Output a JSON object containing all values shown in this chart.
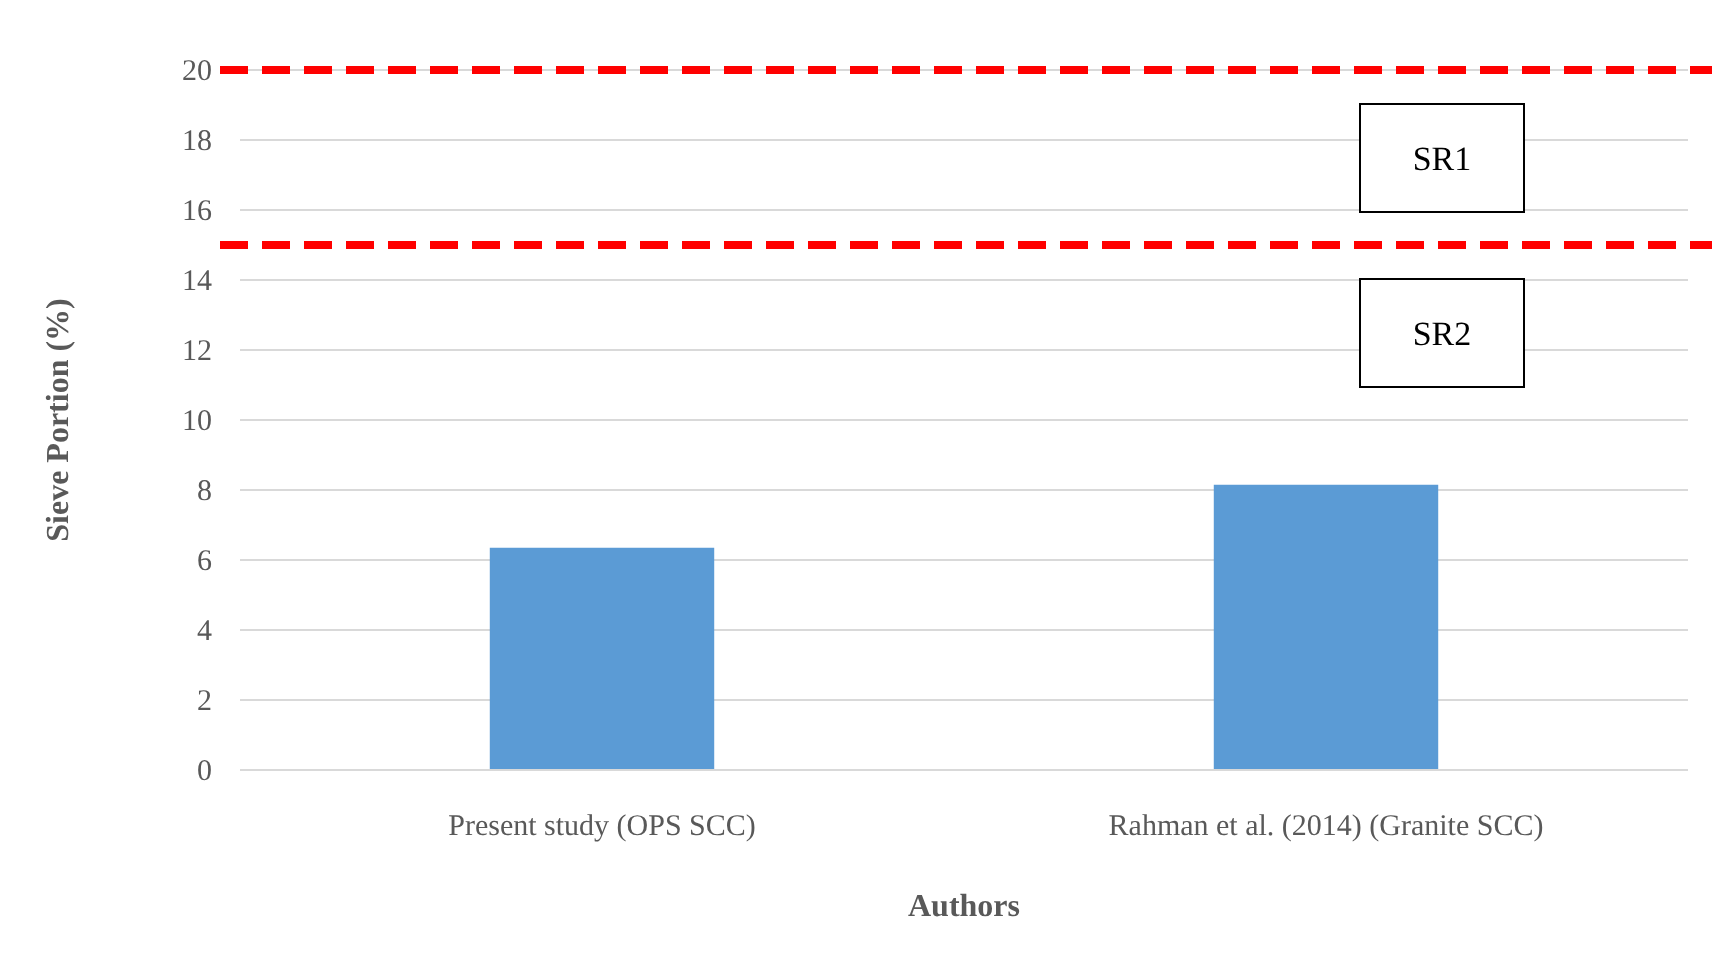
{
  "chart_data": {
    "type": "bar",
    "xlabel": "Authors",
    "ylabel": "Sieve Portion (%)",
    "categories": [
      "Present study (OPS SCC)",
      "Rahman et al. (2014) (Granite SCC)"
    ],
    "values": [
      6.35,
      8.15
    ],
    "color": "#5b9bd5",
    "ylim": [
      0,
      20
    ],
    "yticks": [
      0,
      2,
      4,
      6,
      8,
      10,
      12,
      14,
      16,
      18,
      20
    ],
    "grid": "y",
    "ref_lines": [
      {
        "axis": "y",
        "value": 20,
        "label": "SR1",
        "color": "#ff0000",
        "line_style": "dashed"
      },
      {
        "axis": "y",
        "value": 15,
        "label": "SR2",
        "color": "#ff0000",
        "line_style": "dashed"
      }
    ]
  }
}
